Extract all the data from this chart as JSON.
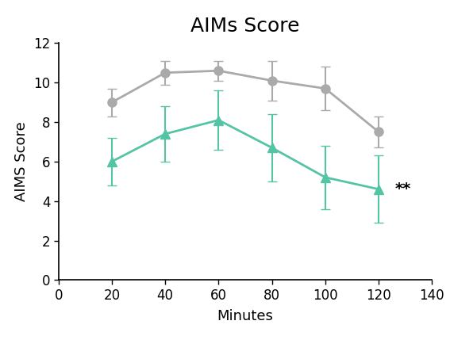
{
  "title": "AIMs Score",
  "xlabel": "Minutes",
  "ylabel": "AIMS Score",
  "xlim": [
    0,
    140
  ],
  "ylim": [
    0,
    12
  ],
  "xticks": [
    0,
    20,
    40,
    60,
    80,
    100,
    120,
    140
  ],
  "yticks": [
    0,
    2,
    4,
    6,
    8,
    10,
    12
  ],
  "minutes": [
    20,
    40,
    60,
    80,
    100,
    120
  ],
  "vehicle_mean": [
    9.0,
    10.5,
    10.6,
    10.1,
    9.7,
    7.5
  ],
  "vehicle_err": [
    0.7,
    0.6,
    0.5,
    1.0,
    1.1,
    0.8
  ],
  "amantadine_mean": [
    6.0,
    7.4,
    8.1,
    6.7,
    5.2,
    4.6
  ],
  "amantadine_err": [
    1.2,
    1.4,
    1.5,
    1.7,
    1.6,
    1.7
  ],
  "vehicle_color": "#aaaaaa",
  "amantadine_color": "#55c4a5",
  "background_color": "#ffffff",
  "significance_text": "**",
  "significance_x": 126,
  "significance_y": 4.6,
  "title_fontsize": 18,
  "label_fontsize": 13,
  "tick_fontsize": 12,
  "legend_fontsize": 14
}
